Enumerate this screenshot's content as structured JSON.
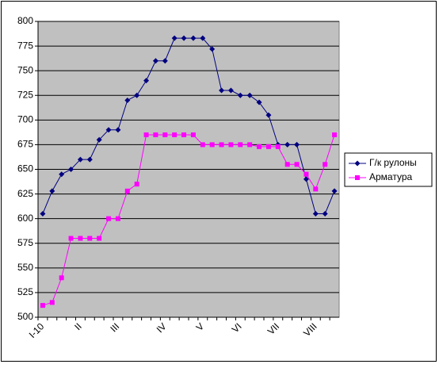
{
  "chart_data": {
    "type": "line",
    "categories": [
      "I-10",
      null,
      null,
      null,
      "II",
      null,
      null,
      null,
      "III",
      null,
      null,
      null,
      null,
      "IV",
      null,
      null,
      null,
      "V",
      null,
      null,
      null,
      "VI",
      null,
      null,
      null,
      "VII",
      null,
      null,
      null,
      "VIII",
      null,
      null
    ],
    "series": [
      {
        "name": "Г/к рулоны",
        "color": "#000080",
        "marker": "diamond",
        "values": [
          605,
          628,
          645,
          650,
          660,
          660,
          680,
          690,
          690,
          720,
          725,
          740,
          760,
          760,
          783,
          783,
          783,
          783,
          772,
          730,
          730,
          725,
          725,
          718,
          705,
          675,
          675,
          675,
          640,
          605,
          605,
          628
        ]
      },
      {
        "name": "Арматура",
        "color": "#ff00ff",
        "marker": "square",
        "values": [
          512,
          515,
          540,
          580,
          580,
          580,
          580,
          600,
          600,
          628,
          635,
          685,
          685,
          685,
          685,
          685,
          685,
          675,
          675,
          675,
          675,
          675,
          675,
          673,
          673,
          673,
          655,
          655,
          645,
          630,
          655,
          685
        ]
      }
    ],
    "ylim": [
      500,
      800
    ],
    "yticks": [
      500,
      525,
      550,
      575,
      600,
      625,
      650,
      675,
      700,
      725,
      750,
      775,
      800
    ],
    "grid": true,
    "legend": "right"
  }
}
